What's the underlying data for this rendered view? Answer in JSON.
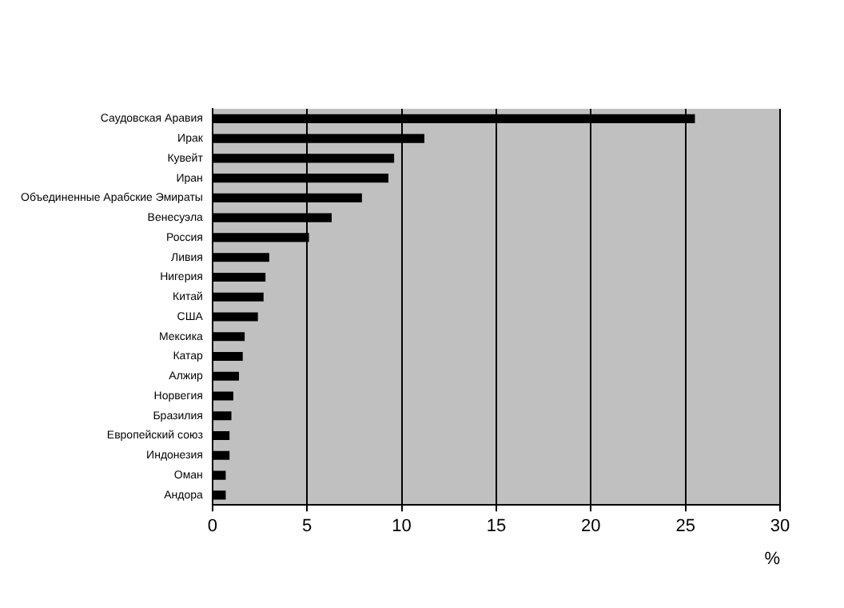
{
  "chart_data": {
    "type": "bar",
    "orientation": "horizontal",
    "xlabel": "%",
    "categories": [
      "Саудовская Аравия",
      "Ирак",
      "Кувейт",
      "Иран",
      "Объединенные Арабские Эмираты",
      "Венесуэла",
      "Россия",
      "Ливия",
      "Нигерия",
      "Китай",
      "США",
      "Мексика",
      "Катар",
      "Алжир",
      "Норвегия",
      "Бразилия",
      "Европейский союз",
      "Индонезия",
      "Оман",
      "Андора"
    ],
    "values": [
      25.5,
      11.2,
      9.6,
      9.3,
      7.9,
      6.3,
      5.1,
      3.0,
      2.8,
      2.7,
      2.4,
      1.7,
      1.6,
      1.4,
      1.1,
      1.0,
      0.9,
      0.9,
      0.7,
      0.7
    ],
    "color": "#000000",
    "xlim": [
      0,
      30
    ],
    "xticks": [
      0,
      5,
      10,
      15,
      20,
      25,
      30
    ],
    "grid": "x",
    "legend": false
  }
}
